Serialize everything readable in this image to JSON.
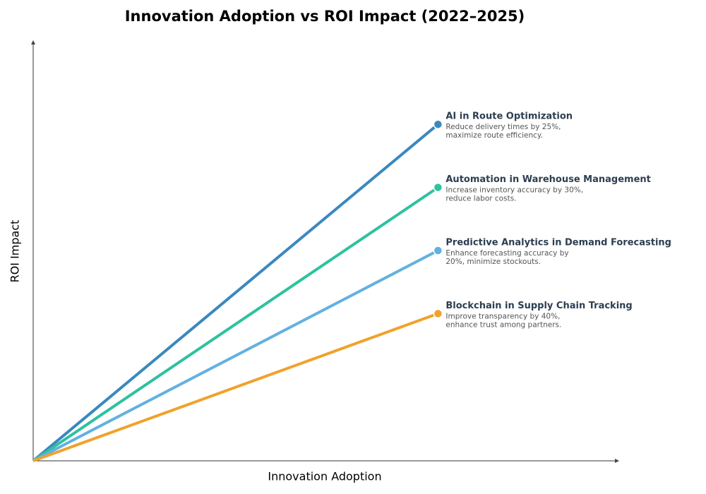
{
  "chart_data": {
    "type": "line",
    "title": "Innovation Adoption vs ROI Impact (2022–2025)",
    "x_label": "Innovation Adoption",
    "y_label": "ROI Impact",
    "xlim": [
      0,
      100
    ],
    "ylim": [
      0,
      100
    ],
    "x": [
      0,
      69
    ],
    "series": [
      {
        "name": "AI in Route Optimization",
        "color": "#3a88bf",
        "values": [
          0,
          80
        ],
        "description": [
          "Reduce delivery times by 25%,",
          "maximize route efficiency."
        ]
      },
      {
        "name": "Automation in Warehouse Management",
        "color": "#2ec29e",
        "values": [
          0,
          65
        ],
        "description": [
          "Increase inventory accuracy by 30%,",
          "reduce labor costs."
        ]
      },
      {
        "name": "Predictive Analytics in Demand Forecasting",
        "color": "#62b1e0",
        "values": [
          0,
          50
        ],
        "description": [
          "Enhance forecasting accuracy by",
          "20%, minimize stockouts."
        ]
      },
      {
        "name": "Blockchain in Supply Chain Tracking",
        "color": "#f0a22c",
        "values": [
          0,
          35
        ],
        "description": [
          "Improve transparency by 40%,",
          "enhance trust among partners."
        ]
      }
    ]
  }
}
